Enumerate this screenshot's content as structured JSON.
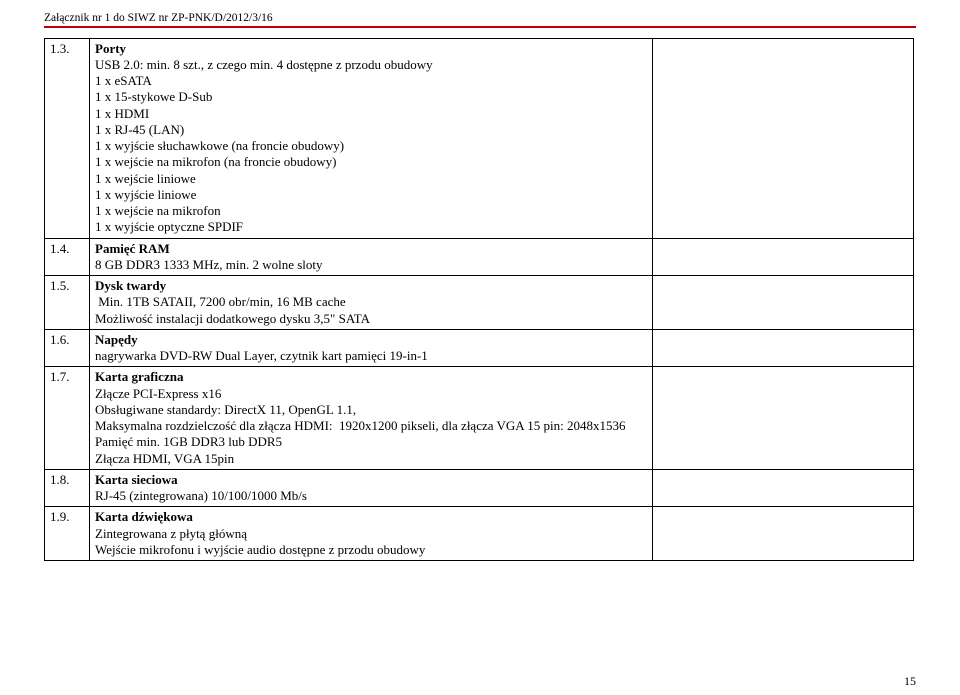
{
  "header": "Załącznik nr 1 do SIWZ nr ZP-PNK/D/2012/3/16",
  "rows": [
    {
      "num": "1.3.",
      "title": "Porty",
      "lines": [
        "USB 2.0: min. 8 szt., z czego min. 4 dostępne z przodu obudowy",
        "1 x eSATA",
        "1 x 15-stykowe D-Sub",
        "1 x HDMI",
        "1 x RJ-45 (LAN)",
        "1 x wyjście słuchawkowe (na froncie obudowy)",
        "1 x wejście na mikrofon (na froncie obudowy)",
        "1 x wejście liniowe",
        "1 x wyjście liniowe",
        "1 x wejście na mikrofon",
        "1 x wyjście optyczne SPDIF"
      ]
    },
    {
      "num": "1.4.",
      "title": "Pamięć RAM",
      "lines": [
        "8 GB DDR3 1333 MHz, min. 2 wolne sloty"
      ]
    },
    {
      "num": "1.5.",
      "title": "Dysk twardy",
      "lines": [
        " Min. 1TB SATAII, 7200 obr/min, 16 MB cache",
        "Możliwość instalacji dodatkowego dysku 3,5\" SATA"
      ]
    },
    {
      "num": "1.6.",
      "title": "Napędy",
      "lines": [
        "nagrywarka DVD-RW Dual Layer, czytnik kart pamięci 19-in-1"
      ]
    },
    {
      "num": "1.7.",
      "title": "Karta graficzna",
      "lines": [
        "Złącze PCI-Express x16",
        "Obsługiwane standardy: DirectX 11, OpenGL 1.1,",
        "Maksymalna rozdzielczość dla złącza HDMI:  1920x1200 pikseli, dla złącza VGA 15 pin: 2048x1536",
        "Pamięć min. 1GB DDR3 lub DDR5",
        "Złącza HDMI, VGA 15pin"
      ]
    },
    {
      "num": "1.8.",
      "title": "Karta sieciowa",
      "lines": [
        "RJ-45 (zintegrowana) 10/100/1000 Mb/s"
      ]
    },
    {
      "num": "1.9.",
      "title": "Karta dźwiękowa",
      "lines": [
        "Zintegrowana z płytą główną",
        "Wejście mikrofonu i wyjście audio dostępne z przodu obudowy"
      ]
    }
  ],
  "page_number": "15",
  "colors": {
    "underline": "#c00000",
    "text": "#000000",
    "border": "#000000",
    "background": "#ffffff"
  },
  "typography": {
    "header_fontsize": 11.5,
    "body_fontsize": 13,
    "font_family": "Times New Roman"
  }
}
